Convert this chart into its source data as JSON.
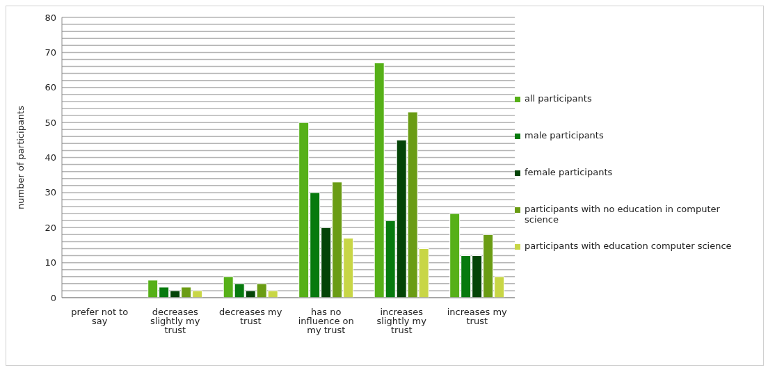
{
  "chart_data": {
    "type": "bar",
    "ylabel": "number of participants",
    "categories": [
      "prefer not to say",
      "decreases slightly my trust",
      "decreases my trust",
      "has no influence on my trust",
      "increases slightly my trust",
      "increases my trust"
    ],
    "series": [
      {
        "name": "all participants",
        "color": "#56b018",
        "values": [
          0,
          5,
          6,
          50,
          67,
          24
        ]
      },
      {
        "name": "male participants",
        "color": "#077a0e",
        "values": [
          0,
          3,
          4,
          30,
          22,
          12
        ]
      },
      {
        "name": "female participants",
        "color": "#044407",
        "values": [
          0,
          2,
          2,
          20,
          45,
          12
        ]
      },
      {
        "name": "participants with no education in computer science",
        "color": "#6a9c14",
        "values": [
          0,
          3,
          4,
          33,
          53,
          18
        ]
      },
      {
        "name": "participants with education computer science",
        "color": "#c8d646",
        "values": [
          0,
          2,
          2,
          17,
          14,
          6
        ]
      }
    ],
    "ylim": [
      0,
      80
    ],
    "yticks": [
      0,
      {
        "value": 2,
        "label": null
      },
      {
        "value": 4,
        "label": null
      },
      {
        "value": 6,
        "label": null
      },
      {
        "value": 8,
        "label": null
      },
      10,
      {
        "value": 12,
        "label": null
      },
      {
        "value": 14,
        "label": null
      },
      {
        "value": 16,
        "label": null
      },
      {
        "value": 18,
        "label": null
      },
      20,
      {
        "value": 22,
        "label": null
      },
      {
        "value": 24,
        "label": null
      },
      {
        "value": 26,
        "label": null
      },
      {
        "value": 28,
        "label": null
      },
      30,
      {
        "value": 32,
        "label": null
      },
      {
        "value": 34,
        "label": null
      },
      {
        "value": 36,
        "label": null
      },
      {
        "value": 38,
        "label": null
      },
      40,
      {
        "value": 42,
        "label": null
      },
      {
        "value": 44,
        "label": null
      },
      {
        "value": 46,
        "label": null
      },
      {
        "value": 48,
        "label": null
      },
      50,
      {
        "value": 52,
        "label": null
      },
      {
        "value": 54,
        "label": null
      },
      {
        "value": 56,
        "label": null
      },
      {
        "value": 58,
        "label": null
      },
      60,
      {
        "value": 62,
        "label": null
      },
      {
        "value": 64,
        "label": null
      },
      {
        "value": 66,
        "label": null
      },
      {
        "value": 68,
        "label": null
      },
      70,
      {
        "value": 72,
        "label": null
      },
      {
        "value": 74,
        "label": null
      },
      {
        "value": 76,
        "label": null
      },
      {
        "value": 78,
        "label": null
      },
      80
    ],
    "grid": "y",
    "legend": "right"
  }
}
